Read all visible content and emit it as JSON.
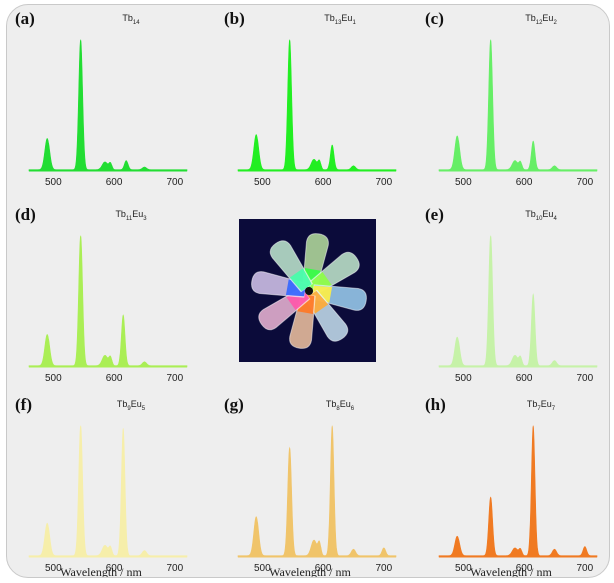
{
  "panels": [
    {
      "label": "(a)",
      "title_parts": [
        [
          "Tb",
          "14"
        ]
      ],
      "color": "#22dd33",
      "eu": 0,
      "xticks": [
        500,
        600,
        700
      ],
      "xlabel": ""
    },
    {
      "label": "(b)",
      "title_parts": [
        [
          "Tb",
          "13"
        ],
        [
          "Eu",
          "1"
        ]
      ],
      "color": "#22ee22",
      "eu": 1,
      "xticks": [
        500,
        600,
        700
      ],
      "xlabel": ""
    },
    {
      "label": "(c)",
      "title_parts": [
        [
          "Tb",
          "12"
        ],
        [
          "Eu",
          "2"
        ]
      ],
      "color": "#66ee66",
      "eu": 2,
      "xticks": [
        500,
        600,
        700
      ],
      "xlabel": ""
    },
    {
      "label": "(d)",
      "title_parts": [
        [
          "Tb",
          "11"
        ],
        [
          "Eu",
          "3"
        ]
      ],
      "color": "#aaee55",
      "eu": 3,
      "xticks": [
        500,
        600,
        700
      ],
      "xlabel": ""
    },
    {
      "label": "(e)",
      "title_parts": [
        [
          "Tb",
          "10"
        ],
        [
          "Eu",
          "4"
        ]
      ],
      "color": "#c6f2a8",
      "eu": 4,
      "xticks": [
        500,
        600,
        700
      ],
      "xlabel": ""
    },
    {
      "label": "(f)",
      "title_parts": [
        [
          "Tb",
          "9"
        ],
        [
          "Eu",
          "5"
        ]
      ],
      "color": "#f6eeaa",
      "eu": 5,
      "xticks": [
        500,
        600,
        700
      ],
      "xlabel": "Wavelength / nm"
    },
    {
      "label": "(g)",
      "title_parts": [
        [
          "Tb",
          "8"
        ],
        [
          "Eu",
          "6"
        ]
      ],
      "color": "#f0c46a",
      "eu": 6,
      "xticks": [
        500,
        600,
        700
      ],
      "xlabel": "Wavelength / nm"
    },
    {
      "label": "(h)",
      "title_parts": [
        [
          "Tb",
          "7"
        ],
        [
          "Eu",
          "7"
        ]
      ],
      "color": "#f07a22",
      "eu": 7,
      "xticks": [
        500,
        600,
        700
      ],
      "xlabel": "Wavelength / nm"
    }
  ],
  "photo": {
    "icon": "eight-vials-photo",
    "vial_colors": [
      "#b9e2a0",
      "#c6ecd0",
      "#9fd2f4",
      "#c9e3f2",
      "#f3c6a2",
      "#f0b8d8",
      "#d8c9f0",
      "#c3ecd2"
    ]
  },
  "chart_data": [
    {
      "type": "area",
      "title": "Tb14",
      "xlim": [
        460,
        720
      ],
      "peaks_nm": [
        490,
        545,
        585,
        620,
        650
      ],
      "peaks_rel_intensity": [
        0.24,
        1.0,
        0.06,
        0.07,
        0.02
      ]
    },
    {
      "type": "area",
      "title": "Tb13Eu1",
      "xlim": [
        460,
        720
      ],
      "peaks_nm": [
        490,
        545,
        585,
        615,
        650
      ],
      "peaks_rel_intensity": [
        0.27,
        1.0,
        0.08,
        0.19,
        0.03
      ]
    },
    {
      "type": "area",
      "title": "Tb12Eu2",
      "xlim": [
        460,
        720
      ],
      "peaks_nm": [
        490,
        545,
        585,
        615,
        650
      ],
      "peaks_rel_intensity": [
        0.26,
        1.0,
        0.07,
        0.22,
        0.03
      ]
    },
    {
      "type": "area",
      "title": "Tb11Eu3",
      "xlim": [
        460,
        720
      ],
      "peaks_nm": [
        490,
        545,
        585,
        615,
        650
      ],
      "peaks_rel_intensity": [
        0.24,
        1.0,
        0.08,
        0.39,
        0.03
      ]
    },
    {
      "type": "area",
      "title": "Tb10Eu4",
      "xlim": [
        460,
        720
      ],
      "peaks_nm": [
        490,
        545,
        585,
        615,
        650
      ],
      "peaks_rel_intensity": [
        0.22,
        1.0,
        0.08,
        0.55,
        0.04
      ]
    },
    {
      "type": "area",
      "title": "Tb9Eu5",
      "xlim": [
        460,
        720
      ],
      "peaks_nm": [
        490,
        545,
        585,
        615,
        650
      ],
      "peaks_rel_intensity": [
        0.25,
        1.0,
        0.08,
        0.98,
        0.04
      ]
    },
    {
      "type": "area",
      "title": "Tb8Eu6",
      "xlim": [
        460,
        720
      ],
      "peaks_nm": [
        490,
        545,
        585,
        615,
        650,
        700
      ],
      "peaks_rel_intensity": [
        0.3,
        0.83,
        0.12,
        1.0,
        0.05,
        0.06
      ]
    },
    {
      "type": "area",
      "title": "Tb7Eu7",
      "xlim": [
        460,
        720
      ],
      "peaks_nm": [
        490,
        545,
        585,
        615,
        650,
        700
      ],
      "peaks_rel_intensity": [
        0.15,
        0.45,
        0.06,
        1.0,
        0.05,
        0.07
      ]
    }
  ]
}
